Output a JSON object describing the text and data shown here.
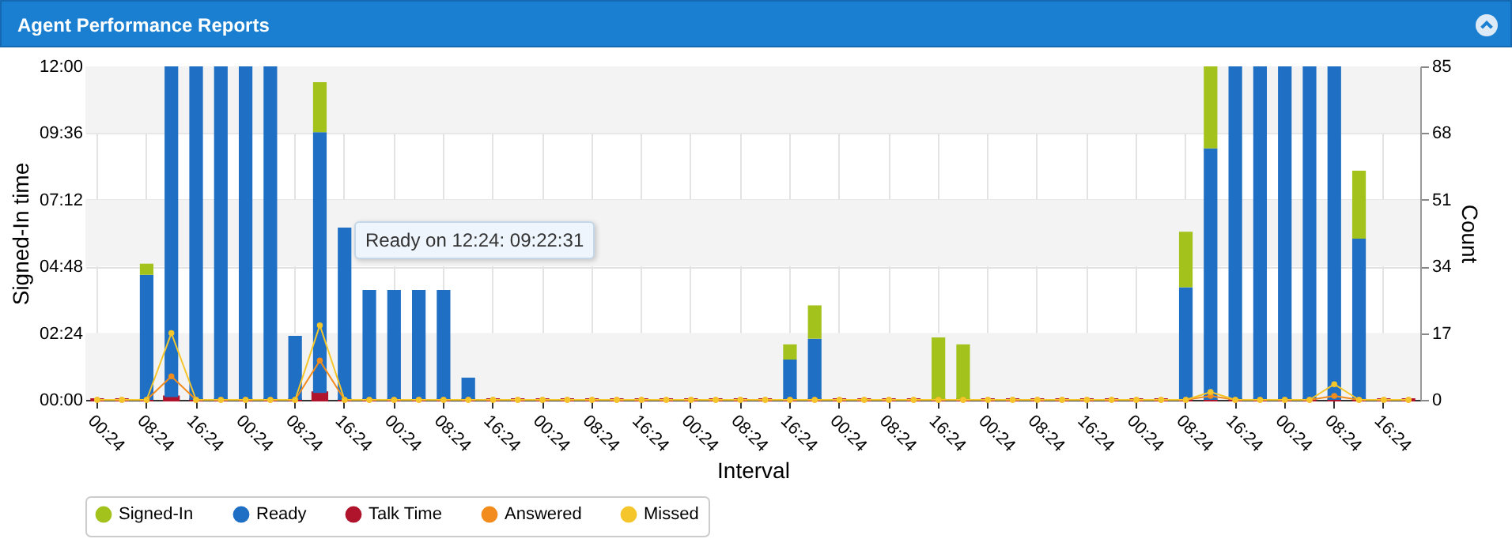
{
  "chart_data": {
    "type": "bar",
    "title": "Agent Performance Reports",
    "xlabel": "Interval",
    "ylabel": "Signed-In time",
    "y2label": "Count",
    "annotations": [
      "Ready on 12:24: 09:22:31"
    ],
    "categories": [
      "00:24",
      null,
      "08:24",
      null,
      "16:24",
      null,
      "00:24",
      null,
      "08:24",
      null,
      "16:24",
      null,
      "00:24",
      null,
      "08:24",
      null,
      "16:24",
      null,
      "00:24",
      null,
      "08:24",
      null,
      "16:24",
      null,
      "00:24",
      null,
      "08:24",
      null,
      "16:24",
      null,
      "00:24",
      null,
      "08:24",
      null,
      "16:24",
      null,
      "00:24",
      null,
      "08:24",
      null,
      "16:24",
      null,
      "00:24",
      null,
      "08:24",
      null,
      "16:24",
      null,
      "00:24",
      null,
      "08:24",
      null,
      "16:24",
      null
    ],
    "stacked": true,
    "series": [
      {
        "name": "Talk Time",
        "color": "#b0142c",
        "values": [
          0,
          0,
          0,
          0.1,
          0,
          0,
          0,
          0,
          0,
          0.25,
          0,
          0,
          0,
          0,
          0,
          0,
          0,
          0,
          0,
          0,
          0,
          0,
          0,
          0,
          0,
          0,
          0,
          0,
          0,
          0,
          0,
          0,
          0,
          0,
          0,
          0,
          0,
          0,
          0,
          0,
          0,
          0,
          0,
          0,
          0,
          0,
          0,
          0,
          0,
          0,
          0,
          0,
          0,
          0
        ]
      },
      {
        "name": "Ready",
        "color": "#1f6fc4",
        "values": [
          0,
          0,
          4.5,
          11.9,
          12,
          12,
          12,
          12,
          2.3,
          9.38,
          6.2,
          3.95,
          3.95,
          3.95,
          3.95,
          0.8,
          0,
          0,
          0,
          0,
          0,
          0,
          0,
          0,
          0,
          0,
          0,
          0,
          1.45,
          2.2,
          0,
          0,
          0,
          0,
          0,
          0,
          0,
          0,
          0,
          0,
          0,
          0,
          0,
          0,
          4.05,
          9.05,
          12,
          12,
          12,
          12,
          12,
          5.8,
          0,
          0
        ]
      },
      {
        "name": "Signed-In",
        "color": "#a3c21c",
        "values": [
          0,
          0,
          0.4,
          0,
          0,
          0,
          0,
          0,
          0,
          1.8,
          0,
          0,
          0,
          0,
          0,
          0,
          0,
          0,
          0,
          0,
          0,
          0,
          0,
          0,
          0,
          0,
          0,
          0,
          0.55,
          1.2,
          0,
          0,
          0,
          0,
          2.25,
          2.0,
          0,
          0,
          0,
          0,
          0,
          0,
          0,
          0,
          2.0,
          2.95,
          0,
          0,
          0,
          0,
          0,
          2.45,
          0,
          0
        ]
      },
      {
        "name": "Answered",
        "type": "line",
        "axis": "y2",
        "color": "#f28c1c",
        "values": [
          0,
          0,
          0,
          6,
          0,
          0,
          0,
          0,
          0,
          10,
          0,
          0,
          0,
          0,
          0,
          0,
          0,
          0,
          0,
          0,
          0,
          0,
          0,
          0,
          0,
          0,
          0,
          0,
          0,
          0,
          0,
          0,
          0,
          0,
          0,
          0,
          0,
          0,
          0,
          0,
          0,
          0,
          0,
          0,
          0,
          1,
          0,
          0,
          0,
          0,
          1,
          0,
          0,
          0
        ]
      },
      {
        "name": "Missed",
        "type": "line",
        "axis": "y2",
        "color": "#f5c62c",
        "values": [
          0,
          0,
          0,
          17,
          0,
          0,
          0,
          0,
          0,
          19,
          0,
          0,
          0,
          0,
          0,
          0,
          0,
          0,
          0,
          0,
          0,
          0,
          0,
          0,
          0,
          0,
          0,
          0,
          0,
          0,
          0,
          0,
          0,
          0,
          0,
          0,
          0,
          0,
          0,
          0,
          0,
          0,
          0,
          0,
          0,
          2,
          0,
          0,
          0,
          0,
          4,
          0,
          0,
          0
        ]
      }
    ],
    "marker": "circle",
    "ylim": [
      0,
      12
    ],
    "yticks": [
      {
        "value": 0,
        "label": "00:00"
      },
      {
        "value": 2.4,
        "label": "02:24"
      },
      {
        "value": 4.8,
        "label": "04:48"
      },
      {
        "value": 7.2,
        "label": "07:12"
      },
      {
        "value": 9.6,
        "label": "09:36"
      },
      {
        "value": 12,
        "label": "12:00"
      }
    ],
    "y2lim": [
      0,
      85
    ],
    "y2ticks": [
      0,
      17,
      34,
      51,
      68,
      85
    ],
    "bands": [
      {
        "axis": "y",
        "from": 0,
        "to": 2.4,
        "color": "#f3f3f3"
      },
      {
        "axis": "y",
        "from": 4.8,
        "to": 7.2,
        "color": "#f3f3f3"
      },
      {
        "axis": "y",
        "from": 9.6,
        "to": 12,
        "color": "#f3f3f3"
      }
    ],
    "grid": true,
    "legend": "bottom"
  }
}
